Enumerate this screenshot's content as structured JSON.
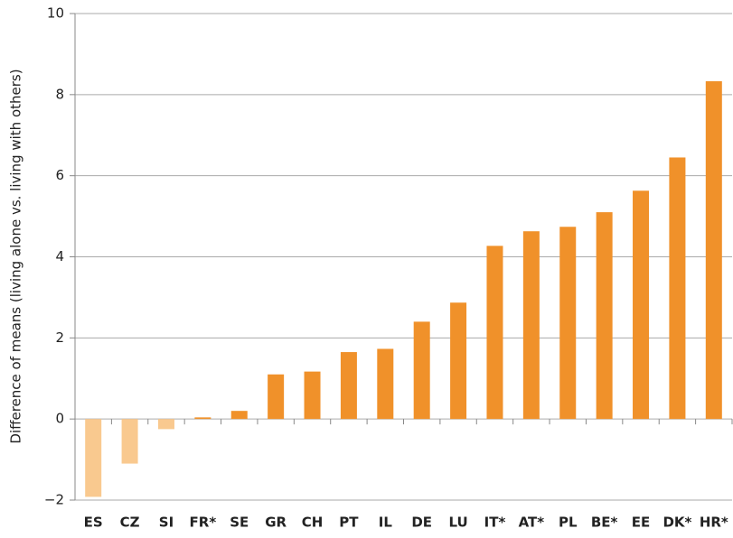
{
  "chart_data": {
    "type": "bar",
    "y_label": "Difference of means (living alone vs. living with others)",
    "categories": [
      "ES",
      "CZ",
      "SI",
      "FR*",
      "SE",
      "GR",
      "CH",
      "PT",
      "IL",
      "DE",
      "LU",
      "IT*",
      "AT*",
      "PL",
      "BE*",
      "EE",
      "DK*",
      "HR*"
    ],
    "values": [
      -1.92,
      -1.1,
      -0.25,
      0.04,
      0.2,
      1.1,
      1.17,
      1.65,
      1.73,
      2.4,
      2.87,
      4.27,
      4.63,
      4.74,
      5.1,
      5.63,
      6.45,
      8.33
    ],
    "color": "#f0912a",
    "negative_color": "#f9c98f",
    "ylim": [
      -2,
      10
    ],
    "yticks": [
      {
        "value": -2,
        "label": "−2"
      },
      0,
      2,
      4,
      6,
      8,
      10
    ],
    "grid": true
  }
}
